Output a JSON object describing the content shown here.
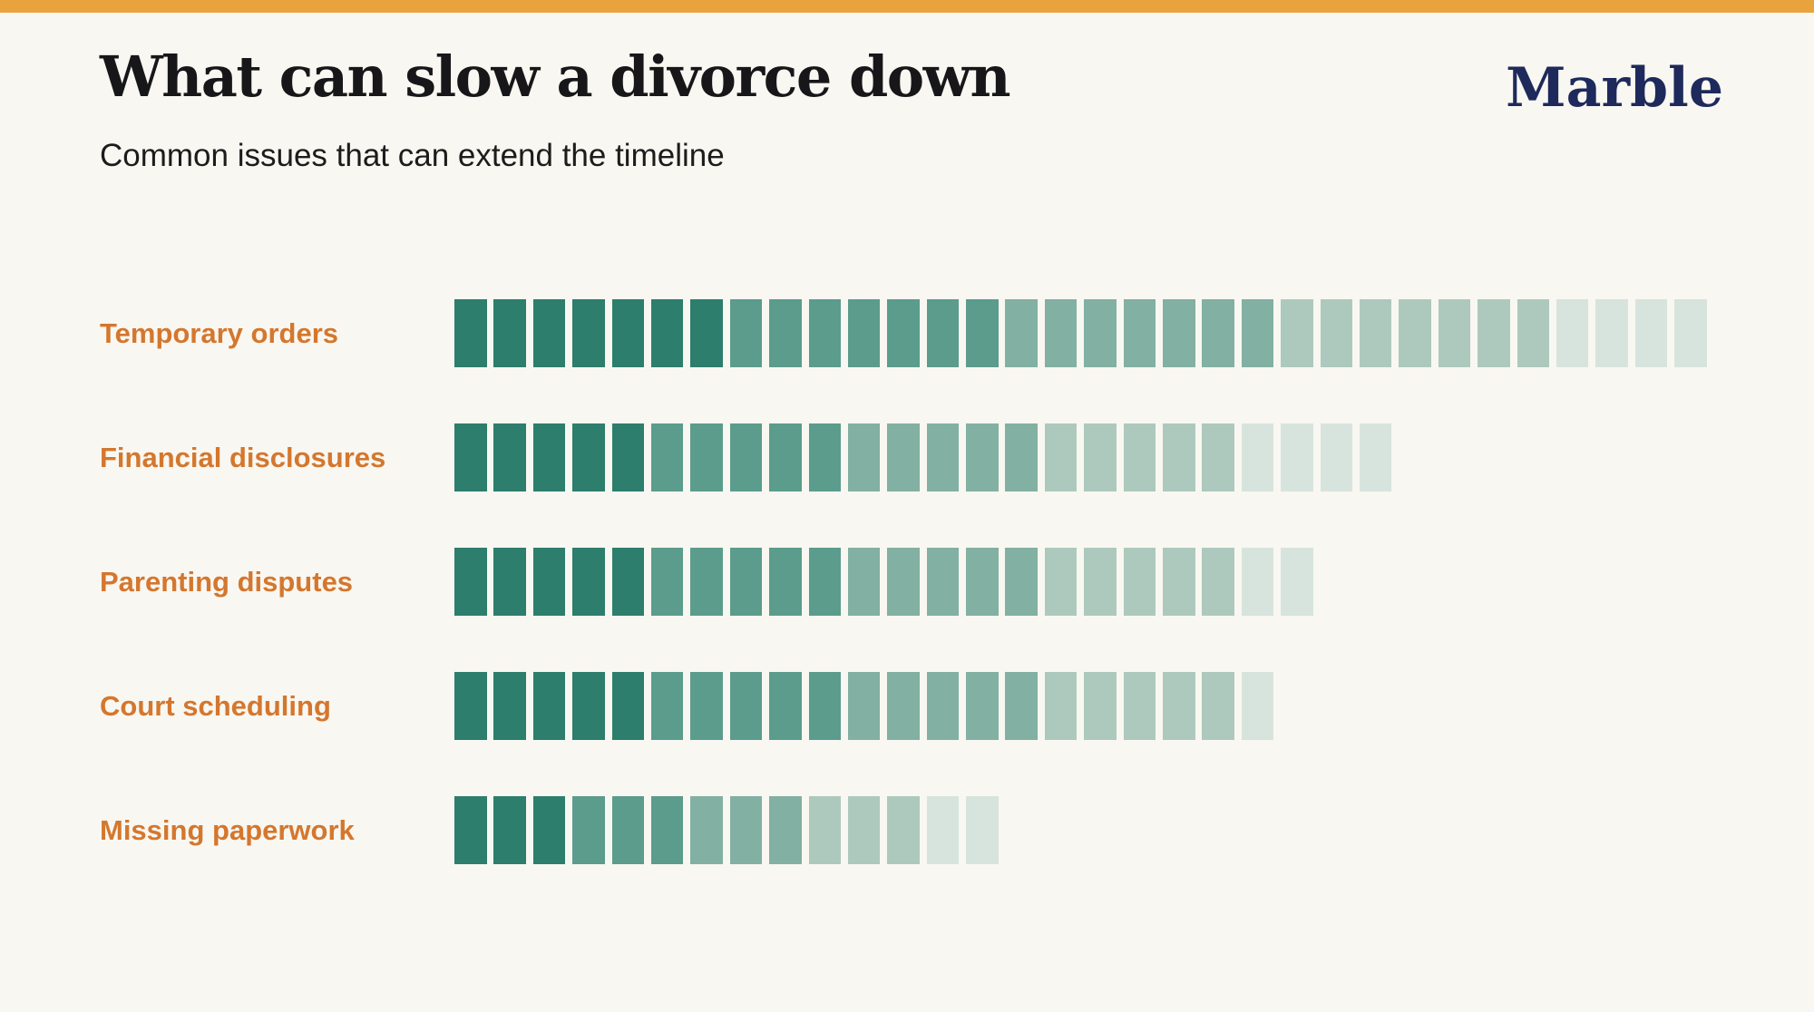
{
  "page": {
    "background_color": "#F9F7F1",
    "accent_bar_color": "#E8A33D"
  },
  "header": {
    "title": "What can slow a divorce down",
    "subtitle": "Common issues that can extend the timeline",
    "logo": "Marble",
    "logo_color": "#1E2A5B"
  },
  "chart_data": {
    "type": "bar",
    "variant": "segmented-block-bars",
    "title": "What can slow a divorce down",
    "subtitle": "Common issues that can extend the timeline",
    "categories": [
      "Temporary orders",
      "Financial disclosures",
      "Parenting disputes",
      "Court scheduling",
      "Missing paperwork"
    ],
    "values": [
      32,
      24,
      22,
      21,
      14
    ],
    "unit": "blocks",
    "xlabel": "",
    "ylabel": "",
    "grid": false,
    "legend": false,
    "label_color": "#D4772E",
    "gradient_palette_dark_to_light": [
      "#2D7E6C",
      "#5B9C8C",
      "#82B0A2",
      "#ADC9BE",
      "#D7E4DD"
    ],
    "rows": [
      {
        "label": "Temporary orders",
        "segments": 32,
        "level_counts": [
          7,
          7,
          7,
          7,
          4
        ]
      },
      {
        "label": "Financial disclosures",
        "segments": 24,
        "level_counts": [
          5,
          5,
          5,
          5,
          4
        ]
      },
      {
        "label": "Parenting disputes",
        "segments": 22,
        "level_counts": [
          5,
          5,
          5,
          5,
          2
        ]
      },
      {
        "label": "Court scheduling",
        "segments": 21,
        "level_counts": [
          5,
          5,
          5,
          5,
          1
        ]
      },
      {
        "label": "Missing paperwork",
        "segments": 14,
        "level_counts": [
          3,
          3,
          3,
          3,
          2
        ]
      }
    ]
  }
}
